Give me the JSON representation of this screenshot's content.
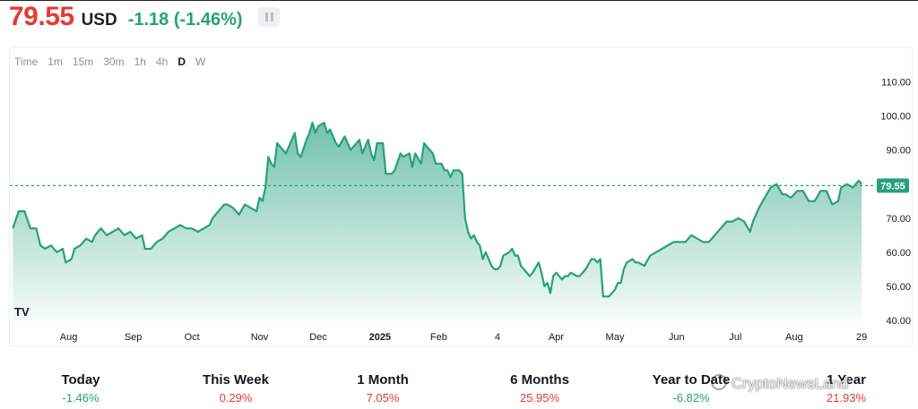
{
  "header": {
    "price": "79.55",
    "currency": "USD",
    "change": "-1.18 (-1.46%)"
  },
  "toolbar": {
    "timeframes": [
      "Time",
      "1m",
      "15m",
      "30m",
      "1h",
      "4h",
      "D",
      "W"
    ],
    "active": "D"
  },
  "colors": {
    "line": "#26a17b",
    "area_top": "#26a17b",
    "price_red": "#e53935",
    "positive_green": "#26a17b"
  },
  "chart_data": {
    "type": "area",
    "current_price_label": "79.55",
    "current_price": 79.55,
    "ylim": [
      40,
      113
    ],
    "y_ticks": [
      40,
      50,
      60,
      70,
      80,
      90,
      100,
      110
    ],
    "y_tick_labels": [
      "40.00",
      "50.00",
      "60.00",
      "70.00",
      "80.00",
      "90.00",
      "100.00",
      "110.00"
    ],
    "x_tick_labels": [
      "Aug",
      "Sep",
      "Oct",
      "Nov",
      "Dec",
      "2025",
      "Feb",
      "4",
      "Apr",
      "May",
      "Jun",
      "Jul",
      "Aug",
      "29"
    ],
    "x_tick_positions": [
      0.9,
      2.0,
      3.0,
      4.15,
      5.15,
      6.2,
      7.2,
      8.2,
      9.2,
      10.2,
      11.25,
      12.25,
      13.25,
      14.4
    ],
    "x_range": [
      -0.1,
      14.55
    ],
    "x_unit": "months since Jul 2024",
    "values": [
      [
        -0.05,
        67
      ],
      [
        0.05,
        72
      ],
      [
        0.15,
        72
      ],
      [
        0.25,
        67
      ],
      [
        0.35,
        67
      ],
      [
        0.42,
        62
      ],
      [
        0.5,
        61
      ],
      [
        0.6,
        62
      ],
      [
        0.7,
        60
      ],
      [
        0.8,
        61
      ],
      [
        0.85,
        57
      ],
      [
        0.95,
        58
      ],
      [
        1.0,
        61
      ],
      [
        1.1,
        62
      ],
      [
        1.2,
        64
      ],
      [
        1.3,
        63
      ],
      [
        1.35,
        65
      ],
      [
        1.45,
        67
      ],
      [
        1.55,
        65
      ],
      [
        1.65,
        66
      ],
      [
        1.75,
        67
      ],
      [
        1.85,
        65
      ],
      [
        1.95,
        66
      ],
      [
        2.05,
        64
      ],
      [
        2.15,
        65
      ],
      [
        2.2,
        61
      ],
      [
        2.3,
        61
      ],
      [
        2.4,
        63
      ],
      [
        2.5,
        64
      ],
      [
        2.6,
        66
      ],
      [
        2.7,
        67
      ],
      [
        2.8,
        68
      ],
      [
        2.9,
        67
      ],
      [
        3.0,
        67
      ],
      [
        3.1,
        66
      ],
      [
        3.2,
        67
      ],
      [
        3.3,
        68
      ],
      [
        3.35,
        70
      ],
      [
        3.45,
        72
      ],
      [
        3.55,
        74
      ],
      [
        3.6,
        74
      ],
      [
        3.7,
        73
      ],
      [
        3.8,
        71
      ],
      [
        3.9,
        74
      ],
      [
        4.0,
        73
      ],
      [
        4.1,
        72
      ],
      [
        4.15,
        76
      ],
      [
        4.2,
        75
      ],
      [
        4.25,
        79
      ],
      [
        4.3,
        88
      ],
      [
        4.35,
        86
      ],
      [
        4.4,
        85
      ],
      [
        4.45,
        92
      ],
      [
        4.5,
        91
      ],
      [
        4.6,
        89
      ],
      [
        4.7,
        93
      ],
      [
        4.75,
        95
      ],
      [
        4.8,
        89
      ],
      [
        4.85,
        88
      ],
      [
        4.95,
        93
      ],
      [
        5.0,
        95
      ],
      [
        5.05,
        98
      ],
      [
        5.1,
        95
      ],
      [
        5.15,
        97
      ],
      [
        5.25,
        98
      ],
      [
        5.3,
        95
      ],
      [
        5.35,
        96
      ],
      [
        5.45,
        92
      ],
      [
        5.5,
        91
      ],
      [
        5.6,
        94
      ],
      [
        5.7,
        90
      ],
      [
        5.75,
        91
      ],
      [
        5.85,
        93
      ],
      [
        5.9,
        89
      ],
      [
        6.0,
        93
      ],
      [
        6.05,
        89
      ],
      [
        6.1,
        87
      ],
      [
        6.15,
        92
      ],
      [
        6.25,
        92
      ],
      [
        6.3,
        83
      ],
      [
        6.4,
        83
      ],
      [
        6.45,
        84
      ],
      [
        6.55,
        89
      ],
      [
        6.6,
        88
      ],
      [
        6.7,
        89
      ],
      [
        6.75,
        85
      ],
      [
        6.8,
        89
      ],
      [
        6.9,
        86
      ],
      [
        6.95,
        92
      ],
      [
        7.05,
        90
      ],
      [
        7.1,
        89
      ],
      [
        7.15,
        86
      ],
      [
        7.25,
        86
      ],
      [
        7.3,
        84
      ],
      [
        7.35,
        84
      ],
      [
        7.4,
        82
      ],
      [
        7.45,
        84
      ],
      [
        7.55,
        84
      ],
      [
        7.6,
        83
      ],
      [
        7.65,
        70
      ],
      [
        7.7,
        66
      ],
      [
        7.75,
        64
      ],
      [
        7.8,
        65
      ],
      [
        7.85,
        63
      ],
      [
        7.9,
        62
      ],
      [
        7.95,
        58
      ],
      [
        8.0,
        60
      ],
      [
        8.05,
        58
      ],
      [
        8.1,
        56
      ],
      [
        8.15,
        55
      ],
      [
        8.2,
        55
      ],
      [
        8.25,
        56
      ],
      [
        8.3,
        59
      ],
      [
        8.4,
        60
      ],
      [
        8.45,
        61
      ],
      [
        8.5,
        59
      ],
      [
        8.55,
        59
      ],
      [
        8.6,
        56
      ],
      [
        8.65,
        55
      ],
      [
        8.75,
        53
      ],
      [
        8.8,
        54
      ],
      [
        8.9,
        57
      ],
      [
        8.95,
        54
      ],
      [
        9.0,
        50
      ],
      [
        9.05,
        51
      ],
      [
        9.1,
        48
      ],
      [
        9.15,
        53
      ],
      [
        9.2,
        54
      ],
      [
        9.3,
        52
      ],
      [
        9.35,
        53
      ],
      [
        9.4,
        53
      ],
      [
        9.45,
        54
      ],
      [
        9.55,
        53
      ],
      [
        9.6,
        53
      ],
      [
        9.7,
        55
      ],
      [
        9.8,
        58
      ],
      [
        9.85,
        58
      ],
      [
        9.9,
        57
      ],
      [
        9.95,
        58
      ],
      [
        10.0,
        47
      ],
      [
        10.1,
        47
      ],
      [
        10.2,
        49
      ],
      [
        10.25,
        51
      ],
      [
        10.3,
        51
      ],
      [
        10.35,
        55
      ],
      [
        10.4,
        57
      ],
      [
        10.5,
        58
      ],
      [
        10.55,
        57
      ],
      [
        10.6,
        57
      ],
      [
        10.7,
        56
      ],
      [
        10.8,
        59
      ],
      [
        10.9,
        60
      ],
      [
        11.0,
        61
      ],
      [
        11.1,
        62
      ],
      [
        11.2,
        63
      ],
      [
        11.3,
        63
      ],
      [
        11.4,
        63
      ],
      [
        11.5,
        65
      ],
      [
        11.6,
        64
      ],
      [
        11.7,
        63
      ],
      [
        11.8,
        63
      ],
      [
        11.9,
        65
      ],
      [
        12.0,
        67
      ],
      [
        12.1,
        69
      ],
      [
        12.2,
        69
      ],
      [
        12.3,
        70
      ],
      [
        12.4,
        69
      ],
      [
        12.5,
        66
      ],
      [
        12.55,
        69
      ],
      [
        12.65,
        73
      ],
      [
        12.75,
        76
      ],
      [
        12.85,
        79
      ],
      [
        12.95,
        80
      ],
      [
        13.05,
        77
      ],
      [
        13.1,
        77
      ],
      [
        13.2,
        76
      ],
      [
        13.3,
        78
      ],
      [
        13.4,
        78
      ],
      [
        13.5,
        75
      ],
      [
        13.6,
        75
      ],
      [
        13.7,
        78
      ],
      [
        13.8,
        78
      ],
      [
        13.9,
        74
      ],
      [
        14.0,
        75
      ],
      [
        14.05,
        79
      ],
      [
        14.15,
        80
      ],
      [
        14.25,
        79
      ],
      [
        14.35,
        81
      ],
      [
        14.4,
        80
      ]
    ]
  },
  "stats": [
    {
      "label": "Today",
      "value": "-1.46%",
      "sign": "neg"
    },
    {
      "label": "This Week",
      "value": "0.29%",
      "sign": "pos"
    },
    {
      "label": "1 Month",
      "value": "7.05%",
      "sign": "pos"
    },
    {
      "label": "6 Months",
      "value": "25.95%",
      "sign": "pos"
    },
    {
      "label": "Year to Date",
      "value": "-6.82%",
      "sign": "neg"
    },
    {
      "label": "1 Year",
      "value": "21.93%",
      "sign": "pos"
    }
  ],
  "watermark": "CryptoNewsLand"
}
